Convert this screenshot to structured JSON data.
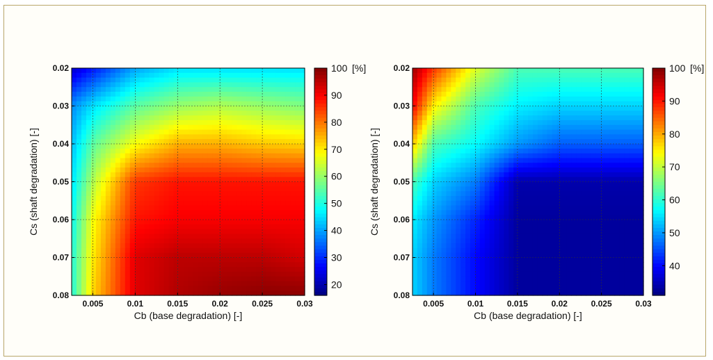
{
  "chart_data": [
    {
      "type": "heatmap",
      "xlabel": "Cb (base degradation) [-]",
      "ylabel": "Cs (shaft degradation) [-]",
      "x_ticks": [
        "0.005",
        "0.01",
        "0.015",
        "0.02",
        "0.025",
        "0.03"
      ],
      "y_ticks": [
        "0.02",
        "0.03",
        "0.04",
        "0.05",
        "0.06",
        "0.07",
        "0.08"
      ],
      "xlim": [
        0.0025,
        0.03
      ],
      "ylim": [
        0.02,
        0.08
      ],
      "y_reversed": true,
      "grid": true,
      "x": [
        0.0025,
        0.005,
        0.01,
        0.015,
        0.02,
        0.025,
        0.03
      ],
      "y": [
        0.02,
        0.03,
        0.04,
        0.05,
        0.06,
        0.07,
        0.08
      ],
      "z": [
        [
          22,
          28,
          40,
          45,
          45,
          45,
          45
        ],
        [
          38,
          45,
          55,
          60,
          62,
          60,
          58
        ],
        [
          42,
          55,
          68,
          75,
          75,
          73,
          72
        ],
        [
          45,
          62,
          85,
          88,
          88,
          88,
          88
        ],
        [
          48,
          68,
          88,
          90,
          90,
          90,
          90
        ],
        [
          50,
          70,
          92,
          95,
          95,
          95,
          93
        ],
        [
          50,
          72,
          92,
          96,
          98,
          99,
          99
        ]
      ],
      "colorbar": {
        "ticks": [
          "20",
          "30",
          "40",
          "50",
          "60",
          "70",
          "80",
          "90",
          "100"
        ],
        "top_label": "[%]",
        "range": [
          16,
          100
        ]
      },
      "colors": {
        "low": "#2a2a8e",
        "high": "#7a0000"
      }
    },
    {
      "type": "heatmap",
      "xlabel": "Cb (base degradation) [-]",
      "ylabel": "Cs (shaft degradation) [-]",
      "x_ticks": [
        "0.005",
        "0.01",
        "0.015",
        "0.02",
        "0.025",
        "0.03"
      ],
      "y_ticks": [
        "0.02",
        "0.03",
        "0.04",
        "0.05",
        "0.06",
        "0.07",
        "0.08"
      ],
      "xlim": [
        0.0025,
        0.03
      ],
      "ylim": [
        0.02,
        0.08
      ],
      "y_reversed": true,
      "grid": true,
      "x": [
        0.0025,
        0.005,
        0.01,
        0.015,
        0.02,
        0.025,
        0.03
      ],
      "y": [
        0.02,
        0.03,
        0.04,
        0.05,
        0.06,
        0.07,
        0.08
      ],
      "z": [
        [
          98,
          88,
          72,
          62,
          62,
          62,
          62
        ],
        [
          92,
          75,
          62,
          56,
          54,
          54,
          54
        ],
        [
          78,
          62,
          57,
          50,
          46,
          46,
          46
        ],
        [
          62,
          54,
          48,
          34,
          34,
          34,
          34
        ],
        [
          56,
          50,
          42,
          33,
          33,
          33,
          33
        ],
        [
          54,
          48,
          40,
          33,
          33,
          33,
          33
        ],
        [
          54,
          48,
          40,
          33,
          33,
          33,
          33
        ]
      ],
      "colorbar": {
        "ticks": [
          "40",
          "50",
          "60",
          "70",
          "80",
          "90",
          "100"
        ],
        "top_label": "[%]",
        "range": [
          31,
          100
        ]
      },
      "colors": {
        "low": "#2a2a8e",
        "high": "#7a0000"
      }
    }
  ]
}
